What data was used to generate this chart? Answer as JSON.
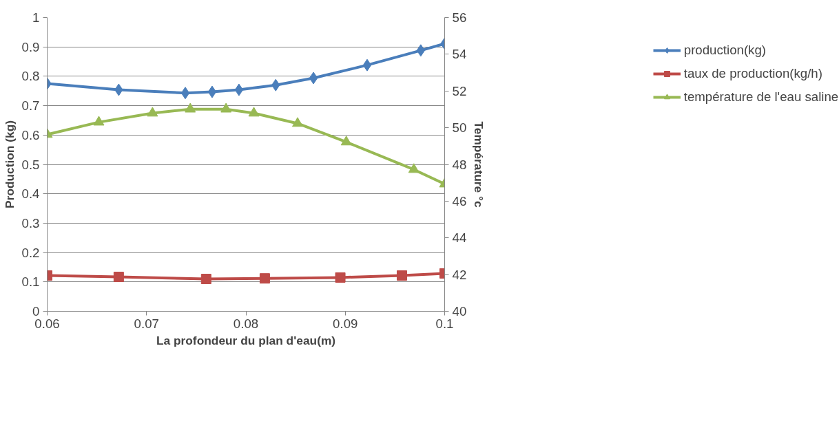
{
  "chart_data": {
    "type": "line",
    "xlabel": "La profondeur du plan d'eau(m)",
    "ylabel": "Production (kg)",
    "y2label": "Température °c",
    "xlim": [
      0.06,
      0.1
    ],
    "xticks": [
      0.06,
      0.07,
      0.08,
      0.09,
      0.1
    ],
    "ylim": [
      0,
      1
    ],
    "yticks": [
      0,
      0.1,
      0.2,
      0.3,
      0.4,
      0.5,
      0.6,
      0.7,
      0.8,
      0.9,
      1
    ],
    "y2lim": [
      40,
      56
    ],
    "y2ticks": [
      40,
      42,
      44,
      46,
      48,
      50,
      52,
      54,
      56
    ],
    "grid": "y",
    "legend": "right",
    "line_style": "solid",
    "series": [
      {
        "name": "production(kg)",
        "color": "#4a7ebb",
        "marker": "diamond",
        "x": [
          0.06,
          0.0672,
          0.0739,
          0.0766,
          0.0793,
          0.083,
          0.0868,
          0.0922,
          0.0976,
          0.1
        ],
        "values": [
          0.775,
          0.754,
          0.743,
          0.747,
          0.754,
          0.77,
          0.794,
          0.838,
          0.888,
          0.911
        ]
      },
      {
        "name": "taux de production(kg/h)",
        "color": "#be4b48",
        "marker": "square",
        "x": [
          0.06,
          0.0672,
          0.076,
          0.0819,
          0.0895,
          0.0957,
          0.1
        ],
        "values": [
          0.122,
          0.117,
          0.11,
          0.112,
          0.115,
          0.122,
          0.129
        ]
      },
      {
        "name": "température de l'eau saline",
        "color": "#98b954",
        "marker": "triangle",
        "axis": "y2",
        "x": [
          0.06,
          0.0652,
          0.0706,
          0.0744,
          0.078,
          0.0808,
          0.0852,
          0.0901,
          0.0969,
          0.1
        ],
        "values": [
          49.63,
          50.3,
          50.79,
          51.01,
          51.01,
          50.79,
          50.23,
          49.22,
          47.72,
          46.93
        ]
      }
    ]
  }
}
